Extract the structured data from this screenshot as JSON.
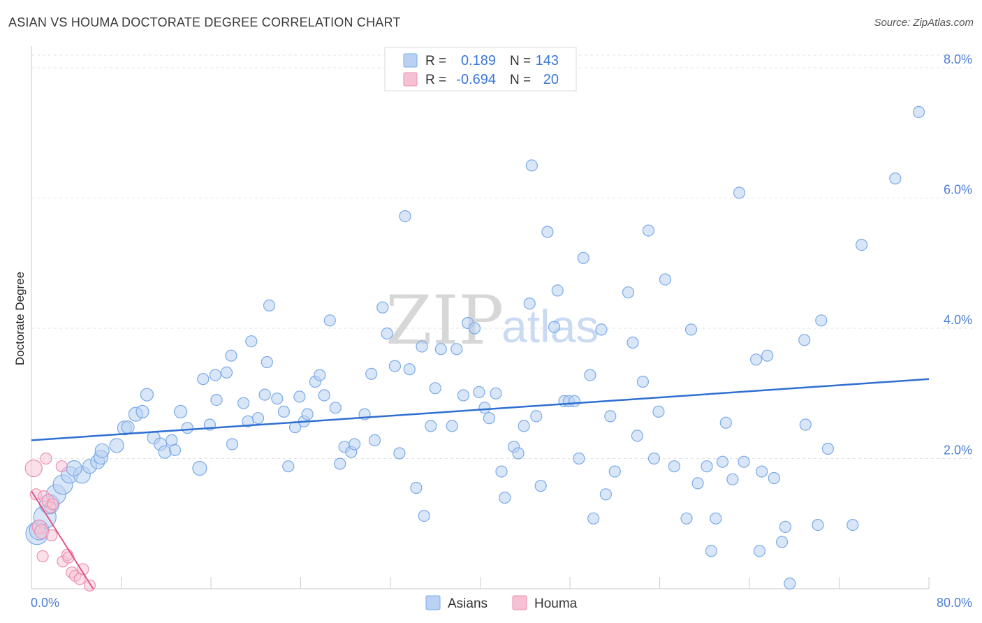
{
  "title": "ASIAN VS HOUMA DOCTORATE DEGREE CORRELATION CHART",
  "source": "Source: ZipAtlas.com",
  "watermark": {
    "zip": "ZIP",
    "atlas": "atlas"
  },
  "chart_data": {
    "type": "scatter",
    "xlabel": "",
    "ylabel": "Doctorate Degree",
    "xlim": [
      0,
      80
    ],
    "ylim": [
      0,
      8
    ],
    "x_tick_labels": [
      "0.0%",
      "80.0%"
    ],
    "y_ticks": [
      2,
      4,
      6,
      8
    ],
    "y_tick_labels": [
      "2.0%",
      "4.0%",
      "6.0%",
      "8.0%"
    ],
    "grid": true,
    "legend_position": "top-center",
    "stats": [
      {
        "r_label": "R =",
        "r_value": "0.189",
        "n_label": "N =",
        "n_value": "143"
      },
      {
        "r_label": "R =",
        "r_value": "-0.694",
        "n_label": "N =",
        "n_value": "20"
      }
    ],
    "series": [
      {
        "name": "Asians",
        "color": "#7aaae8",
        "fill": "#b9d2f3",
        "trend": {
          "x": [
            0,
            80
          ],
          "y": [
            2.28,
            3.22
          ]
        },
        "points": [
          [
            0.5,
            0.85,
            16
          ],
          [
            0.7,
            0.9,
            14
          ],
          [
            1.2,
            1.1,
            16
          ],
          [
            1.6,
            1.3,
            14
          ],
          [
            2.2,
            1.45,
            14
          ],
          [
            2.8,
            1.6,
            14
          ],
          [
            3.4,
            1.75,
            12
          ],
          [
            4.5,
            1.75,
            12
          ],
          [
            3.8,
            1.85,
            11
          ],
          [
            5.2,
            1.88,
            10
          ],
          [
            5.9,
            1.95,
            10
          ],
          [
            6.2,
            2.02,
            10
          ],
          [
            7.6,
            2.2,
            10
          ],
          [
            6.3,
            2.12,
            10
          ],
          [
            8.3,
            2.47,
            10
          ],
          [
            8.6,
            2.48,
            9
          ],
          [
            9.3,
            2.68,
            10
          ],
          [
            9.9,
            2.72,
            9
          ],
          [
            10.3,
            2.98,
            9
          ],
          [
            10.9,
            2.32,
            9
          ],
          [
            11.5,
            2.22,
            9
          ],
          [
            11.9,
            2.1,
            9
          ],
          [
            12.5,
            2.28,
            8
          ],
          [
            12.8,
            2.13,
            8
          ],
          [
            13.3,
            2.72,
            9
          ],
          [
            13.9,
            2.47,
            8
          ],
          [
            15.0,
            1.85,
            10
          ],
          [
            15.3,
            3.22,
            8
          ],
          [
            15.9,
            2.52,
            8
          ],
          [
            16.4,
            3.28,
            8
          ],
          [
            16.5,
            2.9,
            8
          ],
          [
            17.4,
            3.32,
            8
          ],
          [
            17.8,
            3.58,
            8
          ],
          [
            17.9,
            2.22,
            8
          ],
          [
            18.9,
            2.85,
            8
          ],
          [
            19.3,
            2.57,
            8
          ],
          [
            19.6,
            3.8,
            8
          ],
          [
            20.2,
            2.62,
            8
          ],
          [
            20.8,
            2.98,
            8
          ],
          [
            21.0,
            3.48,
            8
          ],
          [
            21.2,
            4.35,
            8
          ],
          [
            21.9,
            2.92,
            8
          ],
          [
            22.5,
            2.72,
            8
          ],
          [
            22.9,
            1.88,
            8
          ],
          [
            23.5,
            2.48,
            8
          ],
          [
            23.9,
            2.95,
            8
          ],
          [
            24.3,
            2.57,
            8
          ],
          [
            24.6,
            2.68,
            8
          ],
          [
            25.3,
            3.18,
            8
          ],
          [
            25.7,
            3.28,
            8
          ],
          [
            26.1,
            2.97,
            8
          ],
          [
            26.6,
            4.12,
            8
          ],
          [
            27.1,
            2.78,
            8
          ],
          [
            27.5,
            1.92,
            8
          ],
          [
            27.9,
            2.18,
            8
          ],
          [
            28.5,
            2.1,
            8
          ],
          [
            28.8,
            2.22,
            8
          ],
          [
            29.7,
            2.68,
            8
          ],
          [
            30.3,
            3.3,
            8
          ],
          [
            30.6,
            2.28,
            8
          ],
          [
            31.3,
            4.32,
            8
          ],
          [
            31.7,
            3.92,
            8
          ],
          [
            32.4,
            3.42,
            8
          ],
          [
            32.8,
            2.08,
            8
          ],
          [
            33.3,
            5.72,
            8
          ],
          [
            33.7,
            3.37,
            8
          ],
          [
            34.3,
            1.55,
            8
          ],
          [
            34.8,
            3.72,
            8
          ],
          [
            35.0,
            1.12,
            8
          ],
          [
            35.6,
            2.5,
            8
          ],
          [
            36.0,
            3.08,
            8
          ],
          [
            36.5,
            3.68,
            8
          ],
          [
            37.5,
            2.5,
            8
          ],
          [
            37.9,
            3.68,
            8
          ],
          [
            38.5,
            2.97,
            8
          ],
          [
            38.9,
            4.08,
            8
          ],
          [
            39.5,
            4.0,
            8
          ],
          [
            39.9,
            3.02,
            8
          ],
          [
            40.4,
            2.78,
            8
          ],
          [
            40.8,
            2.62,
            8
          ],
          [
            41.4,
            3.0,
            8
          ],
          [
            41.9,
            1.8,
            8
          ],
          [
            42.2,
            1.4,
            8
          ],
          [
            43.0,
            2.18,
            8
          ],
          [
            43.4,
            2.08,
            8
          ],
          [
            43.9,
            2.5,
            8
          ],
          [
            44.4,
            4.38,
            8
          ],
          [
            44.6,
            6.5,
            8
          ],
          [
            45.0,
            2.65,
            8
          ],
          [
            45.4,
            1.58,
            8
          ],
          [
            46.0,
            5.48,
            8
          ],
          [
            46.6,
            4.02,
            8
          ],
          [
            46.9,
            4.58,
            8
          ],
          [
            47.5,
            2.88,
            8
          ],
          [
            47.9,
            2.88,
            8
          ],
          [
            48.4,
            2.88,
            8
          ],
          [
            48.8,
            2.0,
            8
          ],
          [
            49.2,
            5.08,
            8
          ],
          [
            49.8,
            3.28,
            8
          ],
          [
            50.1,
            1.08,
            8
          ],
          [
            50.8,
            3.98,
            8
          ],
          [
            51.2,
            1.45,
            8
          ],
          [
            51.6,
            2.65,
            8
          ],
          [
            52.0,
            1.8,
            8
          ],
          [
            53.2,
            4.55,
            8
          ],
          [
            53.6,
            3.78,
            8
          ],
          [
            54.0,
            2.35,
            8
          ],
          [
            54.5,
            3.18,
            8
          ],
          [
            55.0,
            5.5,
            8
          ],
          [
            55.5,
            2.0,
            8
          ],
          [
            55.9,
            2.72,
            8
          ],
          [
            56.5,
            4.75,
            8
          ],
          [
            57.3,
            1.88,
            8
          ],
          [
            58.4,
            1.08,
            8
          ],
          [
            58.8,
            3.98,
            8
          ],
          [
            59.4,
            1.62,
            8
          ],
          [
            60.2,
            1.88,
            8
          ],
          [
            60.6,
            0.58,
            8
          ],
          [
            61.0,
            1.08,
            8
          ],
          [
            61.6,
            1.95,
            8
          ],
          [
            61.9,
            2.55,
            8
          ],
          [
            62.5,
            1.68,
            8
          ],
          [
            63.1,
            6.08,
            8
          ],
          [
            63.5,
            1.95,
            8
          ],
          [
            64.6,
            3.52,
            8
          ],
          [
            64.9,
            0.58,
            8
          ],
          [
            65.1,
            1.8,
            8
          ],
          [
            65.6,
            3.58,
            8
          ],
          [
            66.2,
            1.7,
            8
          ],
          [
            66.9,
            0.72,
            8
          ],
          [
            67.2,
            0.95,
            8
          ],
          [
            67.6,
            0.08,
            8
          ],
          [
            68.9,
            3.82,
            8
          ],
          [
            69.0,
            2.52,
            8
          ],
          [
            70.1,
            0.98,
            8
          ],
          [
            70.4,
            4.12,
            8
          ],
          [
            71.0,
            2.15,
            8
          ],
          [
            73.2,
            0.98,
            8
          ],
          [
            74.0,
            5.28,
            8
          ],
          [
            77.0,
            6.3,
            8
          ],
          [
            79.1,
            7.32,
            8
          ]
        ]
      },
      {
        "name": "Houma",
        "color": "#ef8fb0",
        "fill": "#f6c1d4",
        "trend": {
          "x": [
            0,
            5.5
          ],
          "y": [
            1.5,
            0.0
          ]
        },
        "points": [
          [
            0.2,
            1.85,
            12
          ],
          [
            0.4,
            1.45,
            8
          ],
          [
            0.7,
            0.95,
            10
          ],
          [
            0.9,
            0.88,
            10
          ],
          [
            1.1,
            1.42,
            8
          ],
          [
            1.3,
            2.0,
            8
          ],
          [
            1.5,
            1.35,
            9
          ],
          [
            1.7,
            1.25,
            8
          ],
          [
            1.8,
            0.82,
            8
          ],
          [
            1.9,
            1.3,
            8
          ],
          [
            2.7,
            1.88,
            8
          ],
          [
            1.0,
            0.5,
            8
          ],
          [
            2.8,
            0.42,
            8
          ],
          [
            3.2,
            0.52,
            8
          ],
          [
            3.3,
            0.48,
            8
          ],
          [
            3.6,
            0.25,
            8
          ],
          [
            3.9,
            0.2,
            8
          ],
          [
            4.3,
            0.15,
            8
          ],
          [
            4.6,
            0.3,
            8
          ],
          [
            5.2,
            0.05,
            8
          ]
        ]
      }
    ]
  }
}
